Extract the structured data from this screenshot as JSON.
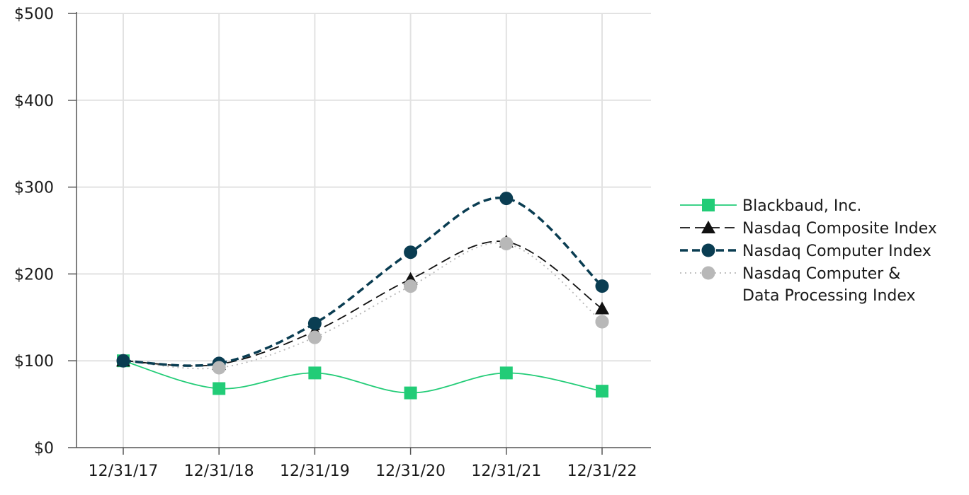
{
  "chart_data": {
    "type": "line",
    "categories": [
      "12/31/17",
      "12/31/18",
      "12/31/19",
      "12/31/20",
      "12/31/21",
      "12/31/22"
    ],
    "ylim": [
      0,
      500
    ],
    "yticks": [
      0,
      100,
      200,
      300,
      400,
      500
    ],
    "ytick_labels": [
      "$0",
      "$100",
      "$200",
      "$300",
      "$400",
      "$500"
    ],
    "grid": true,
    "legend_position": "right",
    "series": [
      {
        "name": "Blackbaud, Inc.",
        "values": [
          100,
          68,
          86,
          63,
          86,
          65
        ],
        "color": "#22cc77",
        "marker": "square",
        "line": "solid"
      },
      {
        "name": "Nasdaq Composite Index",
        "values": [
          100,
          96,
          134,
          194,
          237,
          160
        ],
        "color": "#111111",
        "marker": "triangle",
        "line": "dashed"
      },
      {
        "name": "Nasdaq Computer Index",
        "values": [
          100,
          97,
          143,
          225,
          287,
          186
        ],
        "color": "#0a3d52",
        "marker": "circle",
        "line": "dashed-thick"
      },
      {
        "name": "Nasdaq Computer & Data Processing Index",
        "values": [
          100,
          92,
          127,
          186,
          235,
          145
        ],
        "color": "#b8b8b8",
        "marker": "circle",
        "line": "dotted"
      }
    ],
    "legend_lines": [
      [
        "Blackbaud, Inc."
      ],
      [
        "Nasdaq Composite Index"
      ],
      [
        "Nasdaq Computer Index"
      ],
      [
        "Nasdaq Computer &",
        "Data Processing Index"
      ]
    ]
  }
}
